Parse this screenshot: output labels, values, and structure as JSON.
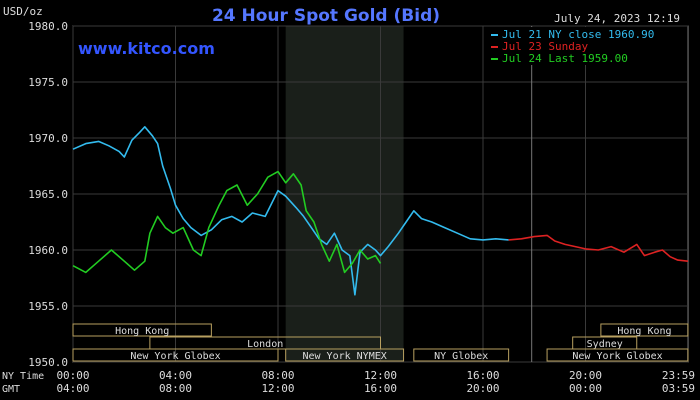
{
  "chart_data": {
    "type": "line",
    "title": "24 Hour Spot Gold (Bid)",
    "unit_label": "USD/oz",
    "timestamp": "July 24, 2023 12:19",
    "watermark": "www.kitco.com",
    "ylim": [
      1950,
      1980
    ],
    "yticks": [
      1950.0,
      1955.0,
      1960.0,
      1965.0,
      1970.0,
      1975.0,
      1980.0
    ],
    "ytick_labels": [
      "1950.0",
      "1955.0",
      "1960.0",
      "1965.0",
      "1970.0",
      "1975.0",
      "1980.0"
    ],
    "xlim": [
      0,
      24
    ],
    "ny_time_label": "NY Time",
    "gmt_label": "GMT",
    "xticks_ny": [
      "00:00",
      "04:00",
      "08:00",
      "12:00",
      "16:00",
      "20:00",
      "23:59"
    ],
    "xticks_gmt": [
      "04:00",
      "08:00",
      "12:00",
      "16:00",
      "20:00",
      "00:00",
      "03:59"
    ],
    "xtick_hours": [
      0,
      4,
      8,
      12,
      16,
      20,
      23.98
    ],
    "legend_placement": "top-right",
    "sessions": [
      {
        "name": "Hong Kong",
        "start": 0,
        "end": 5.4,
        "row": 1
      },
      {
        "name": "London",
        "start": 3,
        "end": 12,
        "row": 2
      },
      {
        "name": "New York Globex",
        "start": 0,
        "end": 8,
        "row": 3
      },
      {
        "name": "New York NYMEX",
        "start": 8.3,
        "end": 12.9,
        "row": 3
      },
      {
        "name": "NY Globex",
        "start": 13.3,
        "end": 17,
        "row": 3
      },
      {
        "name": "Sydney",
        "start": 19.5,
        "end": 22,
        "row": 2
      },
      {
        "name": "Hong Kong",
        "start": 20.6,
        "end": 24,
        "row": 1
      },
      {
        "name": "New York Globex",
        "start": 18.5,
        "end": 24,
        "row": 3
      }
    ],
    "series": [
      {
        "name": "Jul 21 NY close 1960.90",
        "color": "#33bbee",
        "x": [
          0,
          0.5,
          1,
          1.4,
          1.8,
          2.0,
          2.3,
          2.6,
          2.8,
          3.1,
          3.3,
          3.5,
          3.8,
          4.0,
          4.3,
          4.6,
          5.0,
          5.4,
          5.8,
          6.2,
          6.6,
          7.0,
          7.5,
          8.0,
          8.3,
          8.7,
          9.0,
          9.3,
          9.6,
          9.9,
          10.2,
          10.5,
          10.8,
          11.0,
          11.2,
          11.5,
          11.8,
          12.0,
          12.3,
          12.7,
          13.0,
          13.3,
          13.6,
          14.0,
          14.5,
          15.0,
          15.5,
          16.0,
          16.5,
          17.0
        ],
        "y": [
          1969.0,
          1969.5,
          1969.7,
          1969.3,
          1968.8,
          1968.3,
          1969.8,
          1970.5,
          1971.0,
          1970.2,
          1969.5,
          1967.5,
          1965.5,
          1964.0,
          1962.8,
          1962.0,
          1961.3,
          1961.8,
          1962.7,
          1963.0,
          1962.5,
          1963.3,
          1963.0,
          1965.3,
          1964.8,
          1963.8,
          1963.0,
          1962.0,
          1961.0,
          1960.5,
          1961.5,
          1960.0,
          1959.5,
          1956.0,
          1959.8,
          1960.5,
          1960.0,
          1959.5,
          1960.3,
          1961.5,
          1962.5,
          1963.5,
          1962.8,
          1962.5,
          1962.0,
          1961.5,
          1961.0,
          1960.9,
          1961.0,
          1960.9
        ]
      },
      {
        "name": "Jul 23 Sunday",
        "color": "#dd2222",
        "x": [
          17.0,
          17.5,
          18.0,
          18.5,
          18.8,
          19.2,
          19.6,
          20.0,
          20.5,
          21.0,
          21.5,
          22.0,
          22.3,
          22.7,
          23.0,
          23.3,
          23.6,
          24.0
        ],
        "y": [
          1960.9,
          1961.0,
          1961.2,
          1961.3,
          1960.8,
          1960.5,
          1960.3,
          1960.1,
          1960.0,
          1960.3,
          1959.8,
          1960.5,
          1959.5,
          1959.8,
          1960.0,
          1959.4,
          1959.1,
          1959.0
        ]
      },
      {
        "name": "Jul 24 Last 1959.00",
        "color": "#22cc22",
        "x": [
          0,
          0.5,
          1,
          1.5,
          2.0,
          2.4,
          2.8,
          3.0,
          3.3,
          3.6,
          3.9,
          4.3,
          4.7,
          5.0,
          5.3,
          5.7,
          6.0,
          6.4,
          6.8,
          7.2,
          7.6,
          8.0,
          8.3,
          8.6,
          8.9,
          9.1,
          9.4,
          9.7,
          10.0,
          10.3,
          10.6,
          10.9,
          11.2,
          11.5,
          11.8,
          12.0
        ],
        "y": [
          1958.6,
          1958.0,
          1959.0,
          1960.0,
          1959.0,
          1958.2,
          1959.0,
          1961.5,
          1963.0,
          1962.0,
          1961.5,
          1962.0,
          1960.0,
          1959.5,
          1962.0,
          1964.0,
          1965.3,
          1965.8,
          1964.0,
          1965.0,
          1966.5,
          1967.0,
          1966.0,
          1966.8,
          1965.8,
          1963.5,
          1962.5,
          1960.5,
          1959.0,
          1960.5,
          1958.0,
          1958.8,
          1960.0,
          1959.2,
          1959.5,
          1958.8
        ]
      }
    ]
  }
}
